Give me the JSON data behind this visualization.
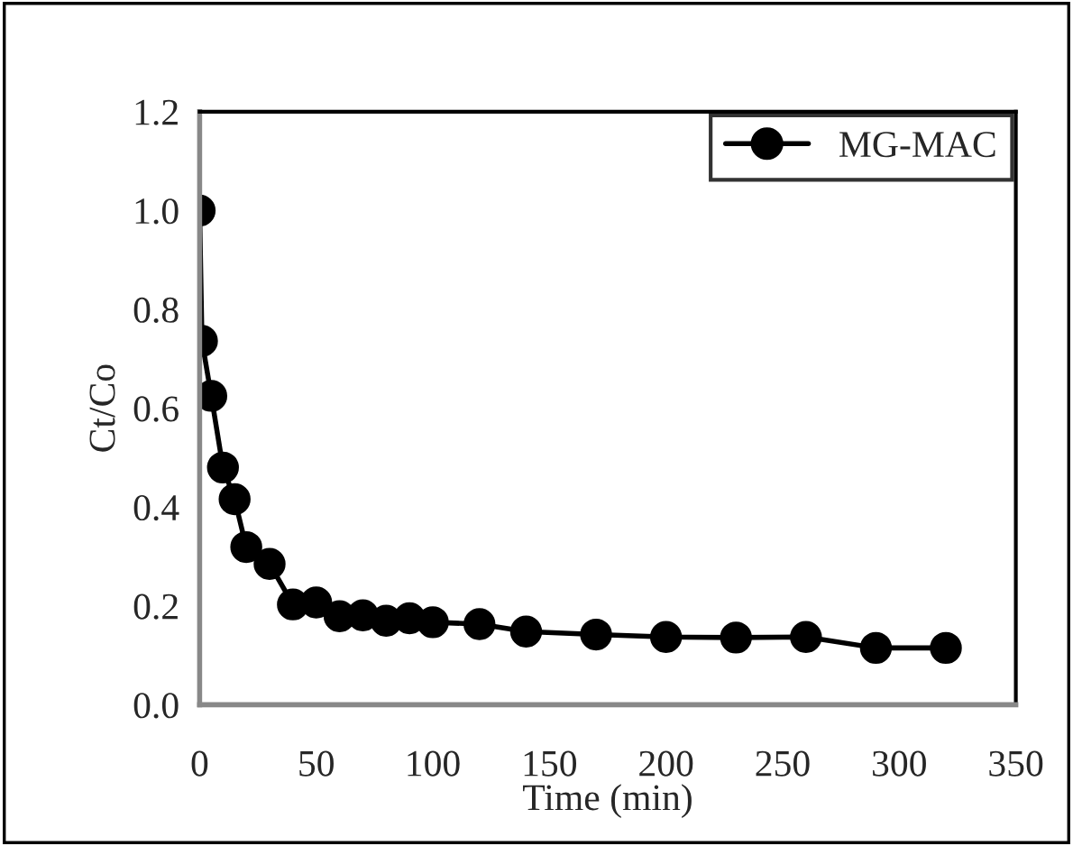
{
  "chart_data": {
    "type": "line",
    "xlabel": "Time (min)",
    "ylabel": "Ct/Co",
    "x": [
      0,
      1,
      5,
      10,
      15,
      20,
      30,
      40,
      50,
      60,
      70,
      80,
      90,
      100,
      120,
      140,
      170,
      200,
      230,
      260,
      290,
      320
    ],
    "series": [
      {
        "name": "MG-MAC",
        "color": "#000000",
        "values": [
          1.0,
          0.736,
          0.625,
          0.48,
          0.416,
          0.319,
          0.285,
          0.203,
          0.207,
          0.179,
          0.181,
          0.17,
          0.175,
          0.167,
          0.163,
          0.148,
          0.142,
          0.137,
          0.136,
          0.137,
          0.115,
          0.115
        ]
      }
    ],
    "xlim": [
      0,
      350
    ],
    "xticks": [
      0,
      50,
      100,
      150,
      200,
      250,
      300,
      350
    ],
    "ylim": [
      0,
      1.2
    ],
    "yticks": [
      {
        "value": 0,
        "label": "0.0"
      },
      {
        "value": 0.2,
        "label": "0.2"
      },
      {
        "value": 0.4,
        "label": "0.4"
      },
      {
        "value": 0.6,
        "label": "0.6"
      },
      {
        "value": 0.8,
        "label": "0.8"
      },
      {
        "value": 1.0,
        "label": "1.0"
      },
      {
        "value": 1.2,
        "label": "1.2"
      }
    ],
    "marker": "circle",
    "line_style": "solid",
    "grid": false,
    "legend": "top right"
  }
}
